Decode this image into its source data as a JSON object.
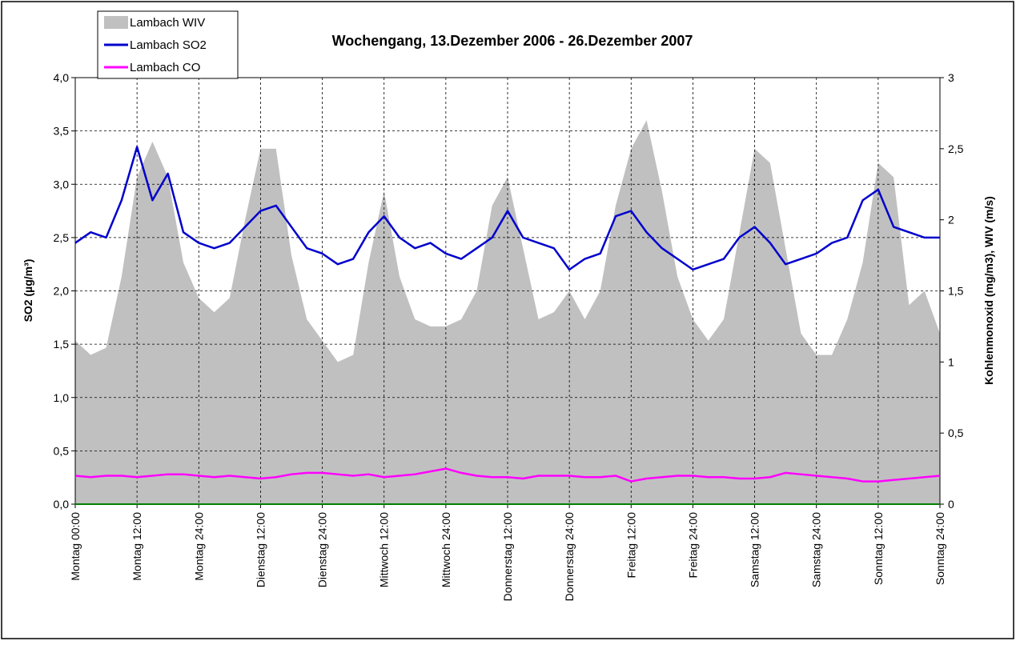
{
  "chart_data": {
    "type": "line",
    "title": "Wochengang,    13.Dezember 2006 -  26.Dezember 2007",
    "y_label": "SO2 (µg/m³)",
    "y2_label": "Kohlenmonoxid (mg/m3), WIV (m/s)",
    "xlim": [
      0,
      168
    ],
    "xticks": [
      {
        "value": 0,
        "label": "Montag 00:00"
      },
      {
        "value": 12,
        "label": "Montag 12:00"
      },
      {
        "value": 24,
        "label": "Montag 24:00"
      },
      {
        "value": 36,
        "label": "Dienstag 12:00"
      },
      {
        "value": 48,
        "label": "Dienstag 24:00"
      },
      {
        "value": 60,
        "label": "Mittwoch 12:00"
      },
      {
        "value": 72,
        "label": "Mittwoch 24:00"
      },
      {
        "value": 84,
        "label": "Donnerstag 12:00"
      },
      {
        "value": 96,
        "label": "Donnerstag 24:00"
      },
      {
        "value": 108,
        "label": "Freitag 12:00"
      },
      {
        "value": 120,
        "label": "Freitag 24:00"
      },
      {
        "value": 132,
        "label": "Samstag 12:00"
      },
      {
        "value": 144,
        "label": "Samstag 24:00"
      },
      {
        "value": 156,
        "label": "Sonntag 12:00"
      },
      {
        "value": 168,
        "label": "Sonntag 24:00"
      }
    ],
    "ylim": [
      0,
      4
    ],
    "yticks": [
      {
        "value": 0,
        "label": "0,0"
      },
      {
        "value": 0.5,
        "label": "0,5"
      },
      {
        "value": 1,
        "label": "1,0"
      },
      {
        "value": 1.5,
        "label": "1,5"
      },
      {
        "value": 2,
        "label": "2,0"
      },
      {
        "value": 2.5,
        "label": "2,5"
      },
      {
        "value": 3,
        "label": "3,0"
      },
      {
        "value": 3.5,
        "label": "3,5"
      },
      {
        "value": 4,
        "label": "4,0"
      }
    ],
    "y2lim": [
      0,
      3
    ],
    "y2ticks": [
      0,
      {
        "value": 0.5,
        "label": "0,5"
      },
      1,
      {
        "value": 1.5,
        "label": "1,5"
      },
      2,
      {
        "value": 2.5,
        "label": "2,5"
      },
      3
    ],
    "grid": true,
    "legend": "top-left",
    "x": [
      0,
      3,
      6,
      9,
      12,
      15,
      18,
      21,
      24,
      27,
      30,
      33,
      36,
      39,
      42,
      45,
      48,
      51,
      54,
      57,
      60,
      63,
      66,
      69,
      72,
      75,
      78,
      81,
      84,
      87,
      90,
      93,
      96,
      99,
      102,
      105,
      108,
      111,
      114,
      117,
      120,
      123,
      126,
      129,
      132,
      135,
      138,
      141,
      144,
      147,
      150,
      153,
      156,
      159,
      162,
      165,
      168
    ],
    "series": [
      {
        "name": "Lambach WIV",
        "color": "#c0c0c0",
        "style": "area",
        "axis": "y2",
        "values": [
          1.15,
          1.05,
          1.1,
          1.6,
          2.3,
          2.55,
          2.3,
          1.7,
          1.45,
          1.35,
          1.45,
          2.0,
          2.5,
          2.5,
          1.75,
          1.3,
          1.15,
          1.0,
          1.05,
          1.7,
          2.2,
          1.6,
          1.3,
          1.25,
          1.25,
          1.3,
          1.5,
          2.1,
          2.3,
          1.8,
          1.3,
          1.35,
          1.5,
          1.3,
          1.5,
          2.1,
          2.5,
          2.7,
          2.2,
          1.6,
          1.3,
          1.15,
          1.3,
          1.9,
          2.5,
          2.4,
          1.8,
          1.2,
          1.05,
          1.05,
          1.3,
          1.7,
          2.4,
          2.3,
          1.4,
          1.5,
          1.2
        ]
      },
      {
        "name": "Lambach SO2",
        "color": "#0000cc",
        "style": "line",
        "values": [
          2.45,
          2.55,
          2.5,
          2.85,
          3.35,
          2.85,
          3.1,
          2.55,
          2.45,
          2.4,
          2.45,
          2.6,
          2.75,
          2.8,
          2.6,
          2.4,
          2.35,
          2.25,
          2.3,
          2.55,
          2.7,
          2.5,
          2.4,
          2.45,
          2.35,
          2.3,
          2.4,
          2.5,
          2.75,
          2.5,
          2.45,
          2.4,
          2.2,
          2.3,
          2.35,
          2.7,
          2.75,
          2.55,
          2.4,
          2.3,
          2.2,
          2.25,
          2.3,
          2.5,
          2.6,
          2.45,
          2.25,
          2.3,
          2.35,
          2.45,
          2.5,
          2.85,
          2.95,
          2.6,
          2.55,
          2.5,
          2.5
        ]
      },
      {
        "name": "Lambach CO",
        "color": "#ff00ff",
        "style": "line",
        "axis": "y2",
        "values": [
          0.2,
          0.19,
          0.2,
          0.2,
          0.19,
          0.2,
          0.21,
          0.21,
          0.2,
          0.19,
          0.2,
          0.19,
          0.18,
          0.19,
          0.21,
          0.22,
          0.22,
          0.21,
          0.2,
          0.21,
          0.19,
          0.2,
          0.21,
          0.23,
          0.25,
          0.22,
          0.2,
          0.19,
          0.19,
          0.18,
          0.2,
          0.2,
          0.2,
          0.19,
          0.19,
          0.2,
          0.16,
          0.18,
          0.19,
          0.2,
          0.2,
          0.19,
          0.19,
          0.18,
          0.18,
          0.19,
          0.22,
          0.21,
          0.2,
          0.19,
          0.18,
          0.16,
          0.16,
          0.17,
          0.18,
          0.19,
          0.2
        ]
      }
    ]
  }
}
